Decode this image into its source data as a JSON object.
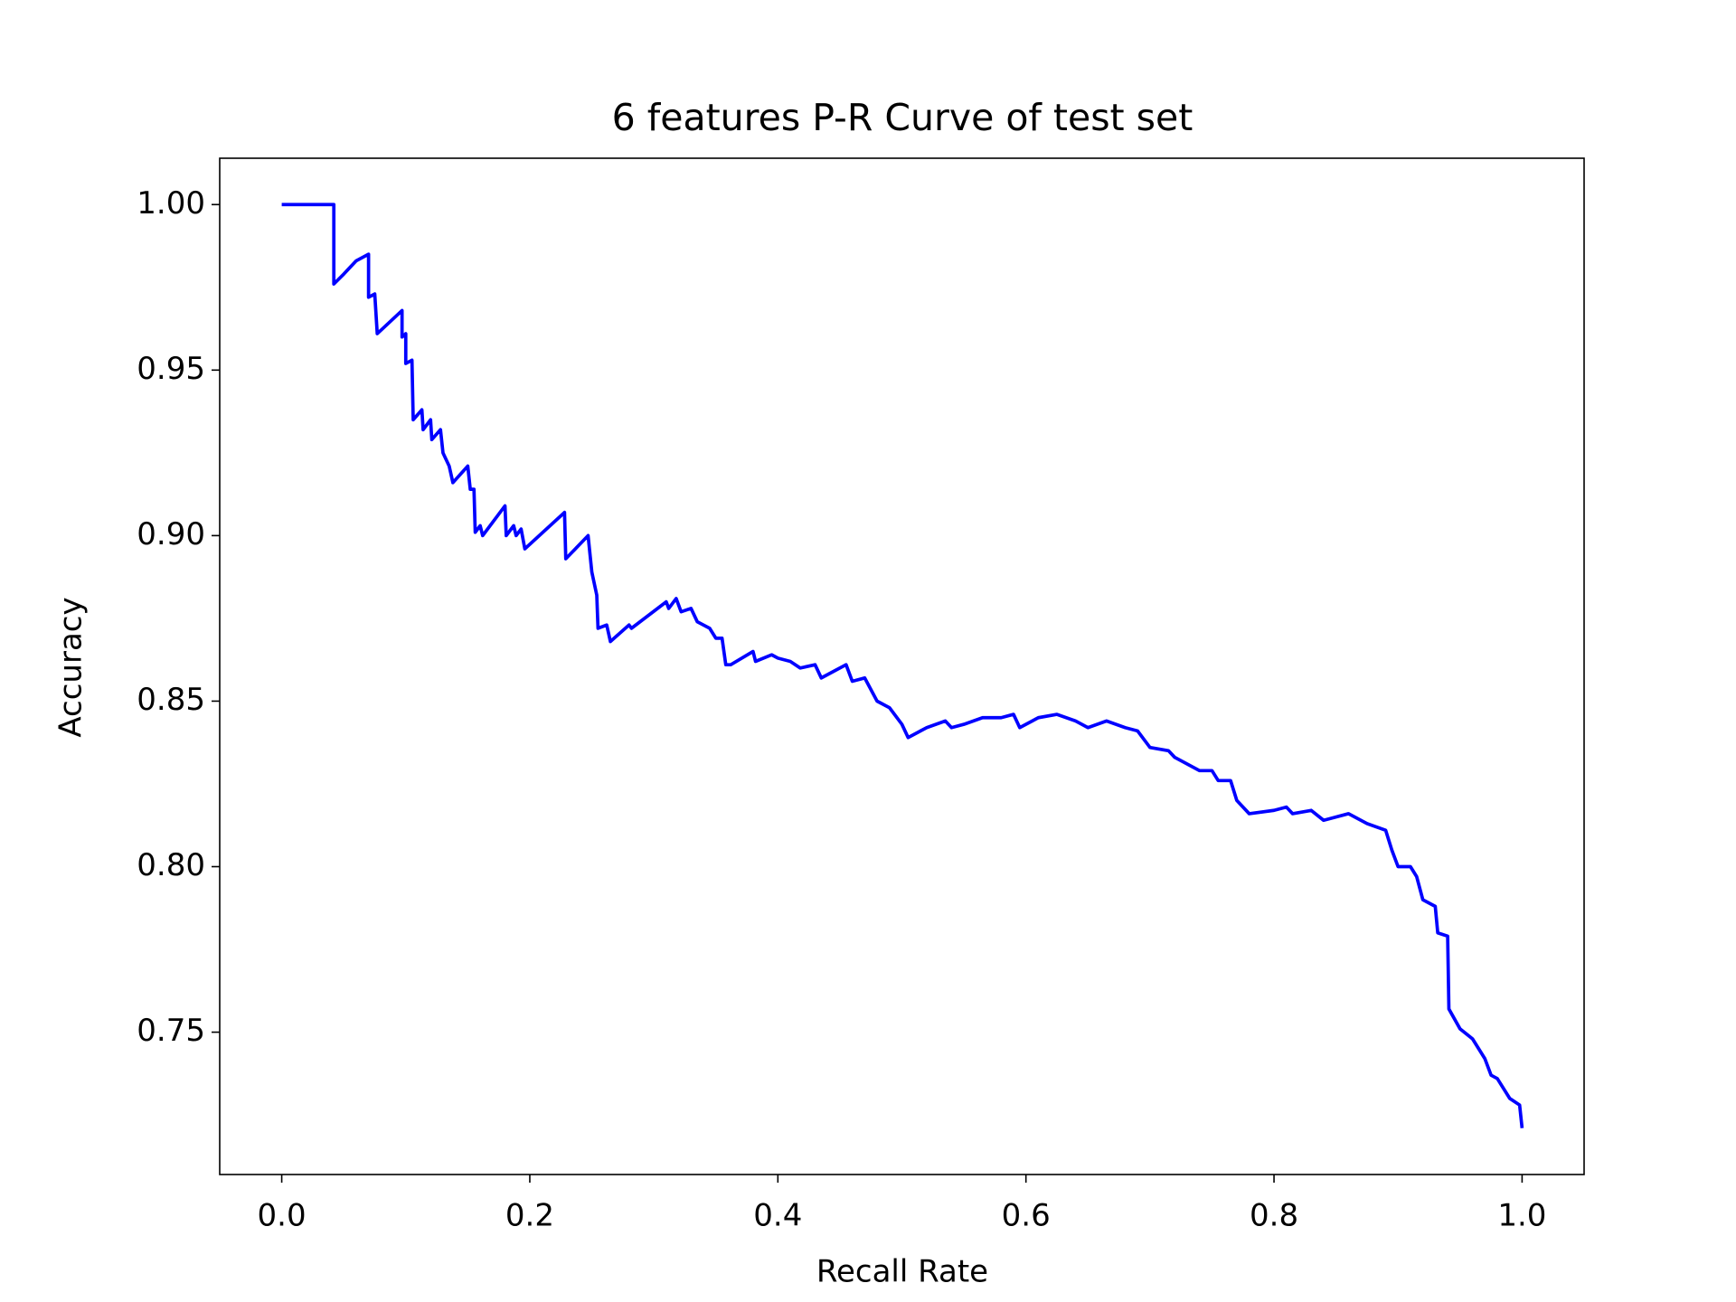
{
  "chart_data": {
    "type": "line",
    "title": "6 features P-R Curve of test set",
    "x_label": "Recall Rate",
    "y_label": "Accuracy",
    "x": [
      0,
      0.042,
      0.042,
      0.05,
      0.06,
      0.07,
      0.07,
      0.075,
      0.077,
      0.097,
      0.097,
      0.1,
      0.1,
      0.105,
      0.106,
      0.113,
      0.114,
      0.12,
      0.121,
      0.128,
      0.13,
      0.135,
      0.138,
      0.15,
      0.152,
      0.155,
      0.156,
      0.16,
      0.162,
      0.18,
      0.181,
      0.187,
      0.189,
      0.193,
      0.196,
      0.228,
      0.229,
      0.247,
      0.25,
      0.254,
      0.255,
      0.262,
      0.265,
      0.28,
      0.282,
      0.31,
      0.312,
      0.318,
      0.322,
      0.33,
      0.335,
      0.345,
      0.35,
      0.355,
      0.358,
      0.362,
      0.38,
      0.382,
      0.395,
      0.4,
      0.41,
      0.418,
      0.43,
      0.435,
      0.455,
      0.46,
      0.47,
      0.48,
      0.49,
      0.5,
      0.505,
      0.52,
      0.535,
      0.54,
      0.55,
      0.565,
      0.58,
      0.59,
      0.595,
      0.61,
      0.625,
      0.64,
      0.65,
      0.665,
      0.68,
      0.69,
      0.7,
      0.715,
      0.72,
      0.73,
      0.74,
      0.75,
      0.755,
      0.765,
      0.77,
      0.78,
      0.8,
      0.81,
      0.815,
      0.83,
      0.84,
      0.86,
      0.875,
      0.89,
      0.895,
      0.9,
      0.91,
      0.915,
      0.92,
      0.93,
      0.932,
      0.94,
      0.941,
      0.95,
      0.96,
      0.97,
      0.975,
      0.98,
      0.99,
      0.998,
      1.0
    ],
    "series": [
      {
        "name": "P-R",
        "color": "#0000ff",
        "values": [
          1.0,
          1.0,
          0.976,
          0.979,
          0.983,
          0.985,
          0.972,
          0.973,
          0.961,
          0.968,
          0.96,
          0.961,
          0.952,
          0.953,
          0.935,
          0.938,
          0.932,
          0.935,
          0.929,
          0.932,
          0.925,
          0.921,
          0.916,
          0.921,
          0.914,
          0.914,
          0.901,
          0.903,
          0.9,
          0.909,
          0.9,
          0.903,
          0.9,
          0.902,
          0.896,
          0.907,
          0.893,
          0.9,
          0.889,
          0.882,
          0.872,
          0.873,
          0.868,
          0.873,
          0.872,
          0.88,
          0.878,
          0.881,
          0.877,
          0.878,
          0.874,
          0.872,
          0.869,
          0.869,
          0.861,
          0.861,
          0.865,
          0.862,
          0.864,
          0.863,
          0.862,
          0.86,
          0.861,
          0.857,
          0.861,
          0.856,
          0.857,
          0.85,
          0.848,
          0.843,
          0.839,
          0.842,
          0.844,
          0.842,
          0.843,
          0.845,
          0.845,
          0.846,
          0.842,
          0.845,
          0.846,
          0.844,
          0.842,
          0.844,
          0.842,
          0.841,
          0.836,
          0.835,
          0.833,
          0.831,
          0.829,
          0.829,
          0.826,
          0.826,
          0.82,
          0.816,
          0.817,
          0.818,
          0.816,
          0.817,
          0.814,
          0.816,
          0.813,
          0.811,
          0.805,
          0.8,
          0.8,
          0.797,
          0.79,
          0.788,
          0.78,
          0.779,
          0.757,
          0.751,
          0.748,
          0.742,
          0.737,
          0.736,
          0.73,
          0.728,
          0.721
        ]
      }
    ],
    "xlim": [
      -0.05,
      1.05
    ],
    "ylim": [
      0.707,
      1.014
    ],
    "xticks": [
      {
        "value": 0,
        "label": "0.0"
      },
      0.2,
      0.4,
      0.6,
      0.8,
      {
        "value": 1,
        "label": "1.0"
      }
    ],
    "yticks": [
      {
        "value": 0.75,
        "label": "0.75"
      },
      {
        "value": 0.8,
        "label": "0.80"
      },
      0.85,
      {
        "value": 0.9,
        "label": "0.90"
      },
      0.95,
      {
        "value": 1,
        "label": "1.00"
      }
    ],
    "grid": false
  }
}
